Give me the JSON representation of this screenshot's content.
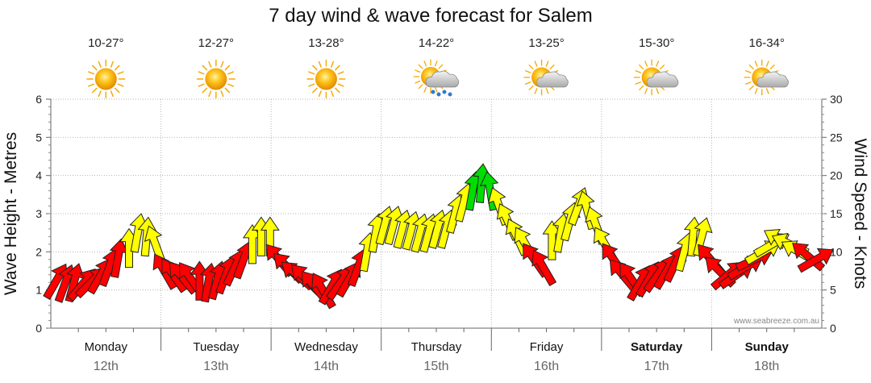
{
  "chart_data": {
    "type": "line",
    "title": "7 day wind & wave forecast for Salem",
    "ylabel_left": "Wave Height - Metres",
    "ylabel_right": "Wind Speed - Knots",
    "ylim_left": [
      0,
      6
    ],
    "ylim_right": [
      0,
      30
    ],
    "yticks_left": [
      "0",
      "1",
      "2",
      "3",
      "4",
      "5",
      "6"
    ],
    "yticks_right": [
      "0",
      "5",
      "10",
      "15",
      "20",
      "25",
      "30"
    ],
    "watermark": "www.seabreeze.com.au",
    "days": [
      {
        "name": "Monday",
        "date": "12th",
        "bold": false,
        "temp": "10-27°",
        "weather": "sunny-icon"
      },
      {
        "name": "Tuesday",
        "date": "13th",
        "bold": false,
        "temp": "12-27°",
        "weather": "sunny-icon"
      },
      {
        "name": "Wednesday",
        "date": "14th",
        "bold": false,
        "temp": "13-28°",
        "weather": "sunny-icon"
      },
      {
        "name": "Thursday",
        "date": "15th",
        "bold": false,
        "temp": "14-22°",
        "weather": "rain-icon"
      },
      {
        "name": "Friday",
        "date": "16th",
        "bold": false,
        "temp": "13-25°",
        "weather": "partly-cloudy-icon"
      },
      {
        "name": "Saturday",
        "date": "17th",
        "bold": true,
        "temp": "15-30°",
        "weather": "partly-cloudy-icon"
      },
      {
        "name": "Sunday",
        "date": "18th",
        "bold": true,
        "temp": "16-34°",
        "weather": "partly-cloudy-icon"
      }
    ],
    "wind_colors": {
      "light": "#ff0000",
      "moderate": "#ffff00",
      "strong": "#00dd00"
    },
    "wind": [
      {
        "t": 0.05,
        "knots": 6.2,
        "dir": 30
      },
      {
        "t": 0.13,
        "knots": 5.9,
        "dir": 20
      },
      {
        "t": 0.21,
        "knots": 6.0,
        "dir": 15
      },
      {
        "t": 0.29,
        "knots": 5.8,
        "dir": 40
      },
      {
        "t": 0.37,
        "knots": 6.1,
        "dir": 45
      },
      {
        "t": 0.45,
        "knots": 6.9,
        "dir": 30
      },
      {
        "t": 0.53,
        "knots": 8.0,
        "dir": 20
      },
      {
        "t": 0.61,
        "knots": 9.2,
        "dir": 10
      },
      {
        "t": 0.71,
        "knots": 10.5,
        "dir": 0
      },
      {
        "t": 0.79,
        "knots": 12.5,
        "dir": 10
      },
      {
        "t": 0.87,
        "knots": 12.0,
        "dir": 5
      },
      {
        "t": 0.95,
        "knots": 11.0,
        "dir": -20
      },
      {
        "t": 1.03,
        "knots": 7.5,
        "dir": -30
      },
      {
        "t": 1.11,
        "knots": 7.0,
        "dir": -35
      },
      {
        "t": 1.19,
        "knots": 6.7,
        "dir": -40
      },
      {
        "t": 1.27,
        "knots": 6.5,
        "dir": -35
      },
      {
        "t": 1.35,
        "knots": 6.2,
        "dir": 0
      },
      {
        "t": 1.43,
        "knots": 6.0,
        "dir": 10
      },
      {
        "t": 1.51,
        "knots": 6.3,
        "dir": 15
      },
      {
        "t": 1.59,
        "knots": 7.0,
        "dir": 20
      },
      {
        "t": 1.67,
        "knots": 8.0,
        "dir": 25
      },
      {
        "t": 1.75,
        "knots": 9.0,
        "dir": 20
      },
      {
        "t": 1.83,
        "knots": 11.0,
        "dir": 0
      },
      {
        "t": 1.91,
        "knots": 12.0,
        "dir": 0
      },
      {
        "t": 1.99,
        "knots": 12.0,
        "dir": 0
      },
      {
        "t": 2.07,
        "knots": 9.0,
        "dir": -40
      },
      {
        "t": 2.15,
        "knots": 8.0,
        "dir": -45
      },
      {
        "t": 2.23,
        "knots": 7.0,
        "dir": -50
      },
      {
        "t": 2.31,
        "knots": 6.5,
        "dir": -45
      },
      {
        "t": 2.39,
        "knots": 5.5,
        "dir": -40
      },
      {
        "t": 2.47,
        "knots": 5.0,
        "dir": -30
      },
      {
        "t": 2.55,
        "knots": 5.5,
        "dir": 30
      },
      {
        "t": 2.63,
        "knots": 6.0,
        "dir": 35
      },
      {
        "t": 2.71,
        "knots": 6.5,
        "dir": 30
      },
      {
        "t": 2.79,
        "knots": 8.0,
        "dir": 20
      },
      {
        "t": 2.87,
        "knots": 10.0,
        "dir": 10
      },
      {
        "t": 2.95,
        "knots": 12.5,
        "dir": 10
      },
      {
        "t": 3.03,
        "knots": 13.5,
        "dir": 15
      },
      {
        "t": 3.11,
        "knots": 13.5,
        "dir": 15
      },
      {
        "t": 3.19,
        "knots": 13.0,
        "dir": 15
      },
      {
        "t": 3.27,
        "knots": 12.8,
        "dir": 15
      },
      {
        "t": 3.35,
        "knots": 12.5,
        "dir": 15
      },
      {
        "t": 3.43,
        "knots": 12.5,
        "dir": 15
      },
      {
        "t": 3.51,
        "knots": 13.0,
        "dir": 15
      },
      {
        "t": 3.59,
        "knots": 13.0,
        "dir": 15
      },
      {
        "t": 3.67,
        "knots": 15.0,
        "dir": 15
      },
      {
        "t": 3.75,
        "knots": 16.5,
        "dir": 15
      },
      {
        "t": 3.83,
        "knots": 18.0,
        "dir": 10
      },
      {
        "t": 3.91,
        "knots": 19.0,
        "dir": 5
      },
      {
        "t": 3.99,
        "knots": 18.0,
        "dir": -10
      },
      {
        "t": 4.07,
        "knots": 16.0,
        "dir": -20
      },
      {
        "t": 4.15,
        "knots": 14.0,
        "dir": -25
      },
      {
        "t": 4.23,
        "knots": 12.0,
        "dir": -25
      },
      {
        "t": 4.31,
        "knots": 11.0,
        "dir": -30
      },
      {
        "t": 4.39,
        "knots": 9.0,
        "dir": -35
      },
      {
        "t": 4.47,
        "knots": 8.0,
        "dir": -30
      },
      {
        "t": 4.55,
        "knots": 11.5,
        "dir": 0
      },
      {
        "t": 4.63,
        "knots": 12.5,
        "dir": 10
      },
      {
        "t": 4.71,
        "knots": 14.0,
        "dir": 15
      },
      {
        "t": 4.79,
        "knots": 16.0,
        "dir": 20
      },
      {
        "t": 4.87,
        "knots": 15.5,
        "dir": -15
      },
      {
        "t": 4.95,
        "knots": 13.5,
        "dir": -20
      },
      {
        "t": 5.03,
        "knots": 11.0,
        "dir": -30
      },
      {
        "t": 5.11,
        "knots": 9.0,
        "dir": -35
      },
      {
        "t": 5.19,
        "knots": 7.0,
        "dir": -40
      },
      {
        "t": 5.27,
        "knots": 6.5,
        "dir": -35
      },
      {
        "t": 5.35,
        "knots": 6.0,
        "dir": 30
      },
      {
        "t": 5.43,
        "knots": 6.5,
        "dir": 30
      },
      {
        "t": 5.51,
        "knots": 7.0,
        "dir": 35
      },
      {
        "t": 5.59,
        "knots": 7.5,
        "dir": 30
      },
      {
        "t": 5.67,
        "knots": 8.5,
        "dir": 25
      },
      {
        "t": 5.75,
        "knots": 10.0,
        "dir": 15
      },
      {
        "t": 5.83,
        "knots": 12.0,
        "dir": 5
      },
      {
        "t": 5.91,
        "knots": 12.0,
        "dir": 15
      },
      {
        "t": 5.99,
        "knots": 9.0,
        "dir": -40
      },
      {
        "t": 6.07,
        "knots": 7.5,
        "dir": -45
      },
      {
        "t": 6.15,
        "knots": 7.0,
        "dir": 50
      },
      {
        "t": 6.23,
        "knots": 7.0,
        "dir": 55
      },
      {
        "t": 6.31,
        "knots": 8.0,
        "dir": 60
      },
      {
        "t": 6.39,
        "knots": 9.0,
        "dir": 65
      },
      {
        "t": 6.47,
        "knots": 10.0,
        "dir": 60
      },
      {
        "t": 6.55,
        "knots": 11.0,
        "dir": 60
      },
      {
        "t": 6.63,
        "knots": 11.5,
        "dir": -60
      },
      {
        "t": 6.71,
        "knots": 11.0,
        "dir": -65
      },
      {
        "t": 6.79,
        "knots": 10.0,
        "dir": -60
      },
      {
        "t": 6.87,
        "knots": 9.5,
        "dir": -50
      },
      {
        "t": 6.95,
        "knots": 9.0,
        "dir": 60
      }
    ]
  }
}
